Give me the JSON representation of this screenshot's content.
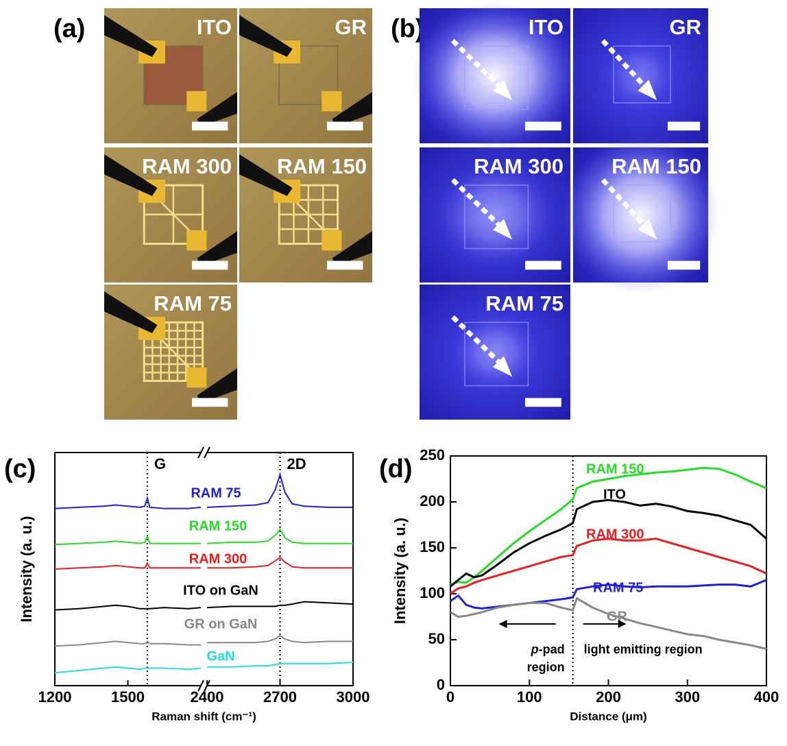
{
  "panels": {
    "a": {
      "tag": "(a)",
      "labels": [
        "ITO",
        "GR",
        "RAM 300",
        "RAM 150",
        "RAM 75"
      ]
    },
    "b": {
      "tag": "(b)",
      "labels": [
        "ITO",
        "GR",
        "RAM 300",
        "RAM 150",
        "RAM 75"
      ]
    }
  },
  "chart_data": [
    {
      "type": "line",
      "tag": "(c)",
      "x_label": "Raman shift (cm⁻¹)",
      "y_label": "Intensity (a. u.)",
      "xlim": [
        1200,
        3000
      ],
      "xbreak": [
        1800,
        2400
      ],
      "xticks": [
        1200,
        1500,
        2400,
        2700,
        3000
      ],
      "ylim": [
        0,
        10
      ],
      "peaks": [
        {
          "label": "G",
          "x": 1580
        },
        {
          "label": "2D",
          "x": 2700
        }
      ],
      "x": [
        1200,
        1300,
        1400,
        1450,
        1500,
        1550,
        1570,
        1580,
        1590,
        1650,
        1750,
        1800,
        2100,
        2400,
        2500,
        2600,
        2650,
        2680,
        2700,
        2720,
        2750,
        2800,
        2900,
        3000
      ],
      "series": [
        {
          "name": "RAM 75",
          "color": "#1f1fe0",
          "values": [
            7.6,
            7.65,
            7.7,
            7.75,
            7.7,
            7.65,
            7.7,
            8.05,
            7.65,
            7.6,
            7.6,
            7.65,
            null,
            7.65,
            7.7,
            7.75,
            7.85,
            8.4,
            9.05,
            8.3,
            7.8,
            7.7,
            7.65,
            7.65
          ]
        },
        {
          "name": "RAM 150",
          "color": "#22e022",
          "values": [
            6.05,
            6.1,
            6.15,
            6.2,
            6.15,
            6.1,
            6.15,
            6.4,
            6.1,
            6.1,
            6.1,
            6.1,
            null,
            6.1,
            6.15,
            6.15,
            6.2,
            6.45,
            6.7,
            6.35,
            6.15,
            6.1,
            6.1,
            6.1
          ]
        },
        {
          "name": "RAM 300",
          "color": "#ee1c1c",
          "values": [
            5.0,
            5.05,
            5.1,
            5.15,
            5.1,
            5.05,
            5.05,
            5.25,
            5.05,
            5.05,
            5.05,
            5.05,
            null,
            5.05,
            5.05,
            5.1,
            5.15,
            5.35,
            5.5,
            5.3,
            5.1,
            5.05,
            5.05,
            5.05
          ]
        },
        {
          "name": "ITO on GaN",
          "color": "#000000",
          "values": [
            3.25,
            3.3,
            3.4,
            3.45,
            3.4,
            3.3,
            3.3,
            3.3,
            3.3,
            3.35,
            3.3,
            3.35,
            null,
            3.35,
            3.4,
            3.4,
            3.4,
            3.4,
            3.45,
            3.45,
            3.5,
            3.6,
            3.55,
            3.5
          ]
        },
        {
          "name": "GR on GaN",
          "color": "#888888",
          "values": [
            1.7,
            1.75,
            1.85,
            1.9,
            1.85,
            1.8,
            1.8,
            1.9,
            1.8,
            1.8,
            1.75,
            1.75,
            null,
            1.85,
            1.85,
            1.85,
            1.9,
            2.0,
            2.15,
            2.0,
            1.9,
            1.85,
            1.9,
            1.9
          ]
        },
        {
          "name": "GaN",
          "color": "#1ee0e8",
          "values": [
            0.55,
            0.65,
            0.75,
            0.8,
            0.75,
            0.7,
            0.75,
            0.75,
            0.75,
            0.75,
            0.7,
            0.75,
            null,
            0.8,
            0.8,
            0.85,
            0.85,
            0.9,
            0.95,
            0.95,
            0.95,
            0.95,
            0.95,
            1.0
          ]
        }
      ]
    },
    {
      "type": "line",
      "tag": "(d)",
      "x_label": "Distance (μm)",
      "y_label": "Intensity (a. u.)",
      "xlim": [
        0,
        400
      ],
      "xticks": [
        0,
        100,
        200,
        300,
        400
      ],
      "ylim": [
        0,
        250
      ],
      "yticks": [
        0,
        50,
        100,
        150,
        200,
        250
      ],
      "divider": 155,
      "left_region_italic": "p",
      "left_region_rest": "-pad",
      "left_region_line2": "region",
      "right_region": "light emitting region",
      "x": [
        0,
        10,
        20,
        30,
        40,
        60,
        80,
        100,
        120,
        140,
        155,
        160,
        180,
        200,
        220,
        240,
        260,
        280,
        300,
        320,
        340,
        360,
        380,
        400
      ],
      "series": [
        {
          "name": "RAM 150",
          "color": "#22e022",
          "values": [
            110,
            113,
            112,
            118,
            125,
            140,
            155,
            168,
            180,
            192,
            203,
            215,
            222,
            225,
            228,
            230,
            232,
            233,
            235,
            237,
            236,
            230,
            222,
            215
          ]
        },
        {
          "name": "ITO",
          "color": "#000000",
          "values": [
            108,
            115,
            122,
            118,
            120,
            132,
            145,
            155,
            163,
            170,
            177,
            192,
            200,
            202,
            200,
            196,
            198,
            195,
            190,
            188,
            185,
            180,
            175,
            160
          ]
        },
        {
          "name": "RAM 300",
          "color": "#ee1c1c",
          "values": [
            100,
            106,
            108,
            112,
            115,
            120,
            125,
            130,
            135,
            140,
            142,
            152,
            158,
            160,
            158,
            158,
            160,
            155,
            150,
            145,
            140,
            135,
            130,
            122
          ]
        },
        {
          "name": "RAM 75",
          "color": "#1f1fe0",
          "values": [
            92,
            98,
            88,
            85,
            84,
            86,
            88,
            90,
            92,
            94,
            96,
            105,
            108,
            110,
            108,
            107,
            108,
            108,
            108,
            109,
            110,
            110,
            108,
            115
          ]
        },
        {
          "name": "GR",
          "color": "#888888",
          "values": [
            80,
            75,
            76,
            78,
            80,
            85,
            88,
            90,
            90,
            85,
            82,
            95,
            85,
            78,
            73,
            68,
            64,
            60,
            56,
            54,
            50,
            47,
            44,
            40
          ]
        }
      ]
    }
  ]
}
